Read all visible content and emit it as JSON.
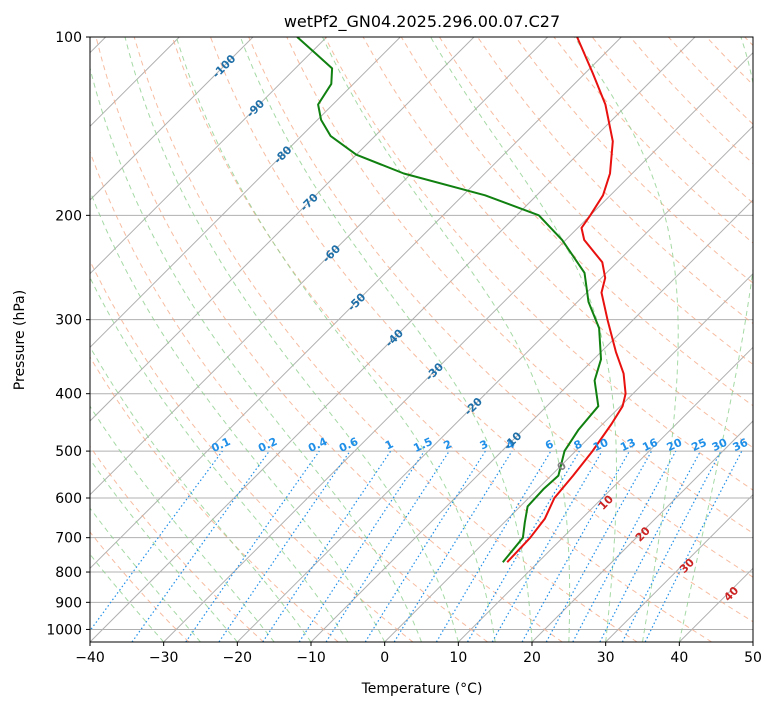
{
  "chart_data": {
    "type": "line",
    "subtype": "skew-t log-p diagram",
    "title": "wetPf2_GN04.2025.296.00.07.C27",
    "xlabel": "Temperature (°C)",
    "ylabel": "Pressure (hPa)",
    "xlim": [
      -40,
      50
    ],
    "ylim": [
      1050,
      100
    ],
    "x_ticks": [
      -40,
      -30,
      -20,
      -10,
      0,
      10,
      20,
      30,
      40,
      50
    ],
    "y_ticks": [
      1000,
      900,
      800,
      700,
      600,
      500,
      400,
      300,
      200,
      100
    ],
    "grid": true,
    "colors": {
      "temperature": "#e8110f",
      "dewpoint": "#108010",
      "isotherm": "#b0b0b0",
      "isobar": "#b0b0b0",
      "dry_adiabat": "#f4a582",
      "moist_adiabat": "#8fcf8f",
      "mixing_ratio": "#1f8fe8",
      "isotherm_label": "#1f6fa8",
      "theta_label": "#cc2222",
      "zero_label": "#808080"
    },
    "series": [
      {
        "name": "Temperature",
        "points": [
          {
            "p": 770,
            "t": 5.8
          },
          {
            "p": 700,
            "t": 5.6
          },
          {
            "p": 650,
            "t": 5.0
          },
          {
            "p": 600,
            "t": 3.5
          },
          {
            "p": 550,
            "t": 3.0
          },
          {
            "p": 500,
            "t": 2.3
          },
          {
            "p": 450,
            "t": 1.2
          },
          {
            "p": 420,
            "t": 0.3
          },
          {
            "p": 400,
            "t": -1.0
          },
          {
            "p": 370,
            "t": -4.0
          },
          {
            "p": 340,
            "t": -8.0
          },
          {
            "p": 300,
            "t": -13.5
          },
          {
            "p": 270,
            "t": -18.0
          },
          {
            "p": 255,
            "t": -19.5
          },
          {
            "p": 240,
            "t": -22.0
          },
          {
            "p": 220,
            "t": -27.5
          },
          {
            "p": 210,
            "t": -29.5
          },
          {
            "p": 200,
            "t": -30.0
          },
          {
            "p": 185,
            "t": -31.0
          },
          {
            "p": 170,
            "t": -33.0
          },
          {
            "p": 150,
            "t": -37.0
          },
          {
            "p": 130,
            "t": -43.0
          },
          {
            "p": 115,
            "t": -49.0
          },
          {
            "p": 100,
            "t": -56.0
          }
        ]
      },
      {
        "name": "Dewpoint",
        "points": [
          {
            "p": 770,
            "t": 5.2
          },
          {
            "p": 700,
            "t": 4.6
          },
          {
            "p": 660,
            "t": 2.8
          },
          {
            "p": 620,
            "t": 1.0
          },
          {
            "p": 580,
            "t": 0.8
          },
          {
            "p": 550,
            "t": 1.0
          },
          {
            "p": 500,
            "t": -1.5
          },
          {
            "p": 460,
            "t": -2.5
          },
          {
            "p": 420,
            "t": -3.0
          },
          {
            "p": 380,
            "t": -7.0
          },
          {
            "p": 350,
            "t": -9.0
          },
          {
            "p": 310,
            "t": -13.5
          },
          {
            "p": 280,
            "t": -18.5
          },
          {
            "p": 250,
            "t": -23.0
          },
          {
            "p": 220,
            "t": -30.5
          },
          {
            "p": 200,
            "t": -37.0
          },
          {
            "p": 185,
            "t": -47.0
          },
          {
            "p": 170,
            "t": -61.0
          },
          {
            "p": 158,
            "t": -70.0
          },
          {
            "p": 147,
            "t": -76.0
          },
          {
            "p": 138,
            "t": -79.5
          },
          {
            "p": 130,
            "t": -82.0
          },
          {
            "p": 120,
            "t": -83.0
          },
          {
            "p": 113,
            "t": -85.0
          },
          {
            "p": 107,
            "t": -89.0
          },
          {
            "p": 100,
            "t": -94.0
          }
        ]
      }
    ],
    "isotherm_labels": [
      "-100",
      "-90",
      "-80",
      "-70",
      "-60",
      "-50",
      "-40",
      "-30",
      "-20",
      "-10"
    ],
    "mixing_ratio_labels": [
      "0.1",
      "0.2",
      "0.4",
      "0.6",
      "1",
      "1.5",
      "2",
      "3",
      "4",
      "6",
      "8",
      "10",
      "13",
      "16",
      "20",
      "25",
      "30",
      "36"
    ],
    "theta_e_labels": [
      "0",
      "10",
      "20",
      "30",
      "40"
    ]
  }
}
